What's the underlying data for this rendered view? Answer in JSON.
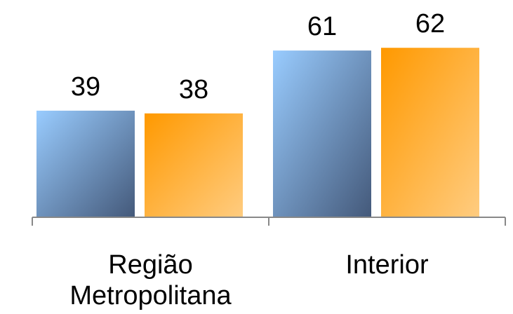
{
  "chart_data": {
    "type": "bar",
    "categories": [
      "Região\nMetropolitana",
      "Interior"
    ],
    "series": [
      {
        "values": [
          39,
          61
        ],
        "color": "#8db3e2"
      },
      {
        "values": [
          38,
          62
        ],
        "color": "#f79646"
      }
    ],
    "title": "",
    "xlabel": "",
    "ylabel": "",
    "ylim": [
      0,
      100
    ],
    "grid": false,
    "legend": "none",
    "data_labels": true,
    "gradients": {
      "blue": [
        "#99ccff",
        "#44597a"
      ],
      "orange": [
        "#ff9900",
        "#ffcc80"
      ]
    },
    "axis_color": "#888888"
  }
}
